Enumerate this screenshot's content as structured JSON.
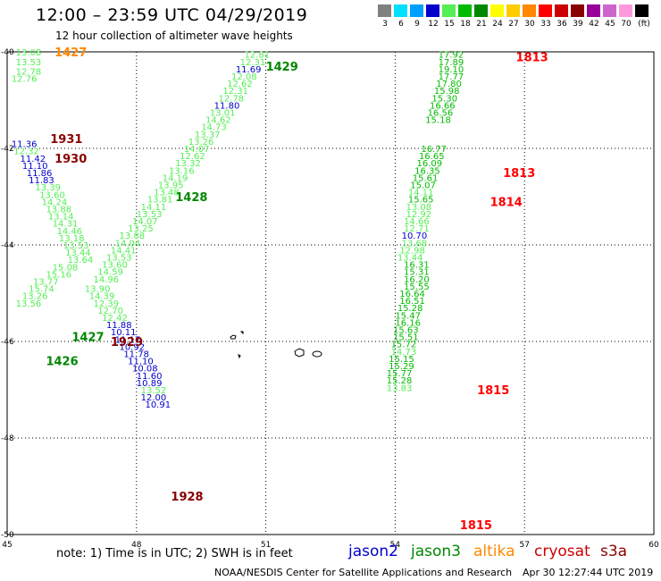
{
  "header": {
    "title": "12:00  – 23:59 UTC 04/29/2019",
    "subtitle": "12 hour collection of altimeter wave heights"
  },
  "color_scale": {
    "unit": "(ft)",
    "bins": [
      {
        "label": "3",
        "color": "#808080"
      },
      {
        "label": "6",
        "color": "#00e0ff"
      },
      {
        "label": "9",
        "color": "#00a0ff"
      },
      {
        "label": "12",
        "color": "#0000cc"
      },
      {
        "label": "15",
        "color": "#55ee55"
      },
      {
        "label": "18",
        "color": "#00bb00"
      },
      {
        "label": "21",
        "color": "#008800"
      },
      {
        "label": "24",
        "color": "#ffff00"
      },
      {
        "label": "27",
        "color": "#ffcc00"
      },
      {
        "label": "30",
        "color": "#ff8800"
      },
      {
        "label": "33",
        "color": "#ff0000"
      },
      {
        "label": "36",
        "color": "#cc0000"
      },
      {
        "label": "39",
        "color": "#880000"
      },
      {
        "label": "42",
        "color": "#990099"
      },
      {
        "label": "45",
        "color": "#cc66cc"
      },
      {
        "label": "70",
        "color": "#ff99dd"
      },
      {
        "label": "",
        "color": "#000000"
      }
    ]
  },
  "axes": {
    "lon_ticks": [
      "45",
      "48",
      "51",
      "54",
      "57",
      "60"
    ],
    "lat_ticks": [
      "-40",
      "-42",
      "-44",
      "-46",
      "-48",
      "-50"
    ]
  },
  "times": [
    {
      "t": "1427",
      "color": "#ff8800",
      "lon": 46.1,
      "lat": -40.0
    },
    {
      "t": "1429",
      "color": "#008800",
      "lon": 51.0,
      "lat": -40.3
    },
    {
      "t": "1931",
      "color": "#880000",
      "lon": 46.0,
      "lat": -41.8
    },
    {
      "t": "1930",
      "color": "#880000",
      "lon": 46.1,
      "lat": -42.2
    },
    {
      "t": "1428",
      "color": "#008800",
      "lon": 48.9,
      "lat": -43.0
    },
    {
      "t": "1427",
      "color": "#008800",
      "lon": 46.5,
      "lat": -45.9
    },
    {
      "t": "1929",
      "color": "#880000",
      "lon": 47.4,
      "lat": -46.0
    },
    {
      "t": "1426",
      "color": "#008800",
      "lon": 45.9,
      "lat": -46.4
    },
    {
      "t": "1928",
      "color": "#880000",
      "lon": 48.8,
      "lat": -49.2
    },
    {
      "t": "1813",
      "color": "#ff0000",
      "lon": 56.8,
      "lat": -40.1
    },
    {
      "t": "1813",
      "color": "#ff0000",
      "lon": 56.5,
      "lat": -42.5
    },
    {
      "t": "1814",
      "color": "#ff0000",
      "lon": 56.2,
      "lat": -43.1
    },
    {
      "t": "1815",
      "color": "#ff0000",
      "lon": 55.9,
      "lat": -47.0
    },
    {
      "t": "1815",
      "color": "#ff0000",
      "lon": 55.5,
      "lat": -49.8
    }
  ],
  "readings": [
    {
      "v": "13.08",
      "c": "#55ee55",
      "lon": 45.2,
      "lat": -40.0
    },
    {
      "v": "13.53",
      "c": "#55ee55",
      "lon": 45.2,
      "lat": -40.2
    },
    {
      "v": "12.78",
      "c": "#55ee55",
      "lon": 45.2,
      "lat": -40.4
    },
    {
      "v": "12.76",
      "c": "#55ee55",
      "lon": 45.1,
      "lat": -40.55
    },
    {
      "v": "12.81",
      "c": "#55ee55",
      "lon": 50.5,
      "lat": -40.05
    },
    {
      "v": "12.31",
      "c": "#55ee55",
      "lon": 50.4,
      "lat": -40.2
    },
    {
      "v": "11.69",
      "c": "#0000cc",
      "lon": 50.3,
      "lat": -40.35
    },
    {
      "v": "12.08",
      "c": "#55ee55",
      "lon": 50.2,
      "lat": -40.5
    },
    {
      "v": "12.62",
      "c": "#55ee55",
      "lon": 50.1,
      "lat": -40.65
    },
    {
      "v": "12.31",
      "c": "#55ee55",
      "lon": 50.0,
      "lat": -40.8
    },
    {
      "v": "12.78",
      "c": "#55ee55",
      "lon": 49.9,
      "lat": -40.95
    },
    {
      "v": "11.80",
      "c": "#0000cc",
      "lon": 49.8,
      "lat": -41.1
    },
    {
      "v": "13.01",
      "c": "#55ee55",
      "lon": 49.7,
      "lat": -41.25
    },
    {
      "v": "14.62",
      "c": "#55ee55",
      "lon": 49.6,
      "lat": -41.4
    },
    {
      "v": "14.73",
      "c": "#55ee55",
      "lon": 49.5,
      "lat": -41.55
    },
    {
      "v": "13.37",
      "c": "#55ee55",
      "lon": 49.35,
      "lat": -41.7
    },
    {
      "v": "13.26",
      "c": "#55ee55",
      "lon": 49.2,
      "lat": -41.85
    },
    {
      "v": "14.07",
      "c": "#55ee55",
      "lon": 49.1,
      "lat": -42.0
    },
    {
      "v": "12.62",
      "c": "#55ee55",
      "lon": 49.0,
      "lat": -42.15
    },
    {
      "v": "13.32",
      "c": "#55ee55",
      "lon": 48.9,
      "lat": -42.3
    },
    {
      "v": "13.16",
      "c": "#55ee55",
      "lon": 48.75,
      "lat": -42.45
    },
    {
      "v": "14.19",
      "c": "#55ee55",
      "lon": 48.6,
      "lat": -42.6
    },
    {
      "v": "13.95",
      "c": "#55ee55",
      "lon": 48.5,
      "lat": -42.75
    },
    {
      "v": "13.48",
      "c": "#55ee55",
      "lon": 48.4,
      "lat": -42.9
    },
    {
      "v": "13.81",
      "c": "#55ee55",
      "lon": 48.25,
      "lat": -43.05
    },
    {
      "v": "14.11",
      "c": "#55ee55",
      "lon": 48.1,
      "lat": -43.2
    },
    {
      "v": "13.53",
      "c": "#55ee55",
      "lon": 48.0,
      "lat": -43.35
    },
    {
      "v": "14.07",
      "c": "#55ee55",
      "lon": 47.9,
      "lat": -43.5
    },
    {
      "v": "13.25",
      "c": "#55ee55",
      "lon": 47.8,
      "lat": -43.65
    },
    {
      "v": "13.88",
      "c": "#55ee55",
      "lon": 47.6,
      "lat": -43.8
    },
    {
      "v": "14.04",
      "c": "#55ee55",
      "lon": 47.5,
      "lat": -43.95
    },
    {
      "v": "14.41",
      "c": "#55ee55",
      "lon": 47.4,
      "lat": -44.1
    },
    {
      "v": "13.53",
      "c": "#55ee55",
      "lon": 47.3,
      "lat": -44.25
    },
    {
      "v": "13.60",
      "c": "#55ee55",
      "lon": 47.2,
      "lat": -44.4
    },
    {
      "v": "14.59",
      "c": "#55ee55",
      "lon": 47.1,
      "lat": -44.55
    },
    {
      "v": "14.96",
      "c": "#55ee55",
      "lon": 47.0,
      "lat": -44.7
    },
    {
      "v": "11.36",
      "c": "#0000cc",
      "lon": 45.1,
      "lat": -41.9
    },
    {
      "v": "12.32",
      "c": "#55ee55",
      "lon": 45.15,
      "lat": -42.05
    },
    {
      "v": "11.42",
      "c": "#0000cc",
      "lon": 45.3,
      "lat": -42.2
    },
    {
      "v": "11.10",
      "c": "#0000cc",
      "lon": 45.35,
      "lat": -42.35
    },
    {
      "v": "11.86",
      "c": "#0000cc",
      "lon": 45.45,
      "lat": -42.5
    },
    {
      "v": "11.83",
      "c": "#0000cc",
      "lon": 45.5,
      "lat": -42.65
    },
    {
      "v": "13.39",
      "c": "#55ee55",
      "lon": 45.65,
      "lat": -42.8
    },
    {
      "v": "13.60",
      "c": "#55ee55",
      "lon": 45.75,
      "lat": -42.95
    },
    {
      "v": "14.24",
      "c": "#55ee55",
      "lon": 45.8,
      "lat": -43.1
    },
    {
      "v": "13.88",
      "c": "#55ee55",
      "lon": 45.9,
      "lat": -43.25
    },
    {
      "v": "13.14",
      "c": "#55ee55",
      "lon": 45.95,
      "lat": -43.4
    },
    {
      "v": "14.31",
      "c": "#55ee55",
      "lon": 46.05,
      "lat": -43.55
    },
    {
      "v": "14.46",
      "c": "#55ee55",
      "lon": 46.15,
      "lat": -43.7
    },
    {
      "v": "13.18",
      "c": "#55ee55",
      "lon": 46.2,
      "lat": -43.85
    },
    {
      "v": "13.53",
      "c": "#55ee55",
      "lon": 46.3,
      "lat": -44.0
    },
    {
      "v": "13.44",
      "c": "#55ee55",
      "lon": 46.35,
      "lat": -44.15
    },
    {
      "v": "13.64",
      "c": "#55ee55",
      "lon": 46.4,
      "lat": -44.3
    },
    {
      "v": "15.08",
      "c": "#55ee55",
      "lon": 46.05,
      "lat": -44.45
    },
    {
      "v": "15.16",
      "c": "#55ee55",
      "lon": 45.9,
      "lat": -44.6
    },
    {
      "v": "13.77",
      "c": "#55ee55",
      "lon": 45.6,
      "lat": -44.75
    },
    {
      "v": "15.74",
      "c": "#55ee55",
      "lon": 45.5,
      "lat": -44.9
    },
    {
      "v": "13.26",
      "c": "#55ee55",
      "lon": 45.35,
      "lat": -45.05
    },
    {
      "v": "13.56",
      "c": "#55ee55",
      "lon": 45.2,
      "lat": -45.2
    },
    {
      "v": "13.90",
      "c": "#55ee55",
      "lon": 46.8,
      "lat": -44.9
    },
    {
      "v": "14.39",
      "c": "#55ee55",
      "lon": 46.9,
      "lat": -45.05
    },
    {
      "v": "12.39",
      "c": "#55ee55",
      "lon": 47.0,
      "lat": -45.2
    },
    {
      "v": "12.70",
      "c": "#55ee55",
      "lon": 47.1,
      "lat": -45.35
    },
    {
      "v": "12.42",
      "c": "#55ee55",
      "lon": 47.2,
      "lat": -45.5
    },
    {
      "v": "11.88",
      "c": "#0000cc",
      "lon": 47.3,
      "lat": -45.65
    },
    {
      "v": "10.11",
      "c": "#0000cc",
      "lon": 47.4,
      "lat": -45.8
    },
    {
      "v": "11.17",
      "c": "#0000cc",
      "lon": 47.5,
      "lat": -45.95
    },
    {
      "v": "10.92",
      "c": "#0000cc",
      "lon": 47.6,
      "lat": -46.1
    },
    {
      "v": "11.78",
      "c": "#0000cc",
      "lon": 47.7,
      "lat": -46.25
    },
    {
      "v": "11.10",
      "c": "#0000cc",
      "lon": 47.8,
      "lat": -46.4
    },
    {
      "v": "10.08",
      "c": "#0000cc",
      "lon": 47.9,
      "lat": -46.55
    },
    {
      "v": "11.60",
      "c": "#0000cc",
      "lon": 48.0,
      "lat": -46.7
    },
    {
      "v": "10.89",
      "c": "#0000cc",
      "lon": 48.0,
      "lat": -46.85
    },
    {
      "v": "13.52",
      "c": "#55ee55",
      "lon": 48.1,
      "lat": -47.0
    },
    {
      "v": "12.00",
      "c": "#0000cc",
      "lon": 48.1,
      "lat": -47.15
    },
    {
      "v": "10.91",
      "c": "#0000cc",
      "lon": 48.2,
      "lat": -47.3
    },
    {
      "v": "17.92",
      "c": "#00bb00",
      "lon": 55.0,
      "lat": -40.05
    },
    {
      "v": "17.89",
      "c": "#00bb00",
      "lon": 55.0,
      "lat": -40.2
    },
    {
      "v": "19.10",
      "c": "#00bb00",
      "lon": 55.0,
      "lat": -40.35
    },
    {
      "v": "17.77",
      "c": "#00bb00",
      "lon": 55.0,
      "lat": -40.5
    },
    {
      "v": "17.80",
      "c": "#00bb00",
      "lon": 54.95,
      "lat": -40.65
    },
    {
      "v": "15.98",
      "c": "#00bb00",
      "lon": 54.9,
      "lat": -40.8
    },
    {
      "v": "15.30",
      "c": "#00bb00",
      "lon": 54.85,
      "lat": -40.95
    },
    {
      "v": "16.66",
      "c": "#00bb00",
      "lon": 54.8,
      "lat": -41.1
    },
    {
      "v": "16.56",
      "c": "#00bb00",
      "lon": 54.75,
      "lat": -41.25
    },
    {
      "v": "15.18",
      "c": "#00bb00",
      "lon": 54.7,
      "lat": -41.4
    },
    {
      "v": "16.77",
      "c": "#00bb00",
      "lon": 54.6,
      "lat": -42.0
    },
    {
      "v": "16.65",
      "c": "#00bb00",
      "lon": 54.55,
      "lat": -42.15
    },
    {
      "v": "16.09",
      "c": "#00bb00",
      "lon": 54.5,
      "lat": -42.3
    },
    {
      "v": "16.35",
      "c": "#00bb00",
      "lon": 54.45,
      "lat": -42.45
    },
    {
      "v": "15.61",
      "c": "#00bb00",
      "lon": 54.4,
      "lat": -42.6
    },
    {
      "v": "15.07",
      "c": "#00bb00",
      "lon": 54.35,
      "lat": -42.75
    },
    {
      "v": "14.11",
      "c": "#55ee55",
      "lon": 54.3,
      "lat": -42.9
    },
    {
      "v": "15.65",
      "c": "#00bb00",
      "lon": 54.3,
      "lat": -43.05
    },
    {
      "v": "13.08",
      "c": "#55ee55",
      "lon": 54.25,
      "lat": -43.2
    },
    {
      "v": "12.92",
      "c": "#55ee55",
      "lon": 54.25,
      "lat": -43.35
    },
    {
      "v": "14.66",
      "c": "#55ee55",
      "lon": 54.2,
      "lat": -43.5
    },
    {
      "v": "12.71",
      "c": "#55ee55",
      "lon": 54.2,
      "lat": -43.65
    },
    {
      "v": "10.70",
      "c": "#0000cc",
      "lon": 54.15,
      "lat": -43.8
    },
    {
      "v": "13.68",
      "c": "#55ee55",
      "lon": 54.15,
      "lat": -43.95
    },
    {
      "v": "12.98",
      "c": "#55ee55",
      "lon": 54.1,
      "lat": -44.1
    },
    {
      "v": "13.44",
      "c": "#55ee55",
      "lon": 54.05,
      "lat": -44.25
    },
    {
      "v": "16.31",
      "c": "#00bb00",
      "lon": 54.2,
      "lat": -44.4
    },
    {
      "v": "15.31",
      "c": "#00bb00",
      "lon": 54.2,
      "lat": -44.55
    },
    {
      "v": "16.20",
      "c": "#00bb00",
      "lon": 54.2,
      "lat": -44.7
    },
    {
      "v": "15.55",
      "c": "#00bb00",
      "lon": 54.2,
      "lat": -44.85
    },
    {
      "v": "16.64",
      "c": "#00bb00",
      "lon": 54.1,
      "lat": -45.0
    },
    {
      "v": "16.51",
      "c": "#00bb00",
      "lon": 54.1,
      "lat": -45.15
    },
    {
      "v": "15.28",
      "c": "#00bb00",
      "lon": 54.05,
      "lat": -45.3
    },
    {
      "v": "15.47",
      "c": "#00bb00",
      "lon": 54.0,
      "lat": -45.45
    },
    {
      "v": "16.16",
      "c": "#00bb00",
      "lon": 54.0,
      "lat": -45.6
    },
    {
      "v": "15.63",
      "c": "#00bb00",
      "lon": 53.95,
      "lat": -45.75
    },
    {
      "v": "15.51",
      "c": "#00bb00",
      "lon": 53.95,
      "lat": -45.9
    },
    {
      "v": "15.72",
      "c": "#00bb00",
      "lon": 53.9,
      "lat": -46.05
    },
    {
      "v": "14.73",
      "c": "#55ee55",
      "lon": 53.9,
      "lat": -46.2
    },
    {
      "v": "15.15",
      "c": "#00bb00",
      "lon": 53.85,
      "lat": -46.35
    },
    {
      "v": "15.29",
      "c": "#00bb00",
      "lon": 53.85,
      "lat": -46.5
    },
    {
      "v": "15.77",
      "c": "#00bb00",
      "lon": 53.8,
      "lat": -46.65
    },
    {
      "v": "15.28",
      "c": "#00bb00",
      "lon": 53.8,
      "lat": -46.8
    },
    {
      "v": "13.83",
      "c": "#55ee55",
      "lon": 53.8,
      "lat": -46.95
    }
  ],
  "footer": {
    "note": "note:  1) Time is in UTC;  2) SWH is in feet",
    "satellites": [
      {
        "name": "jason2",
        "color": "#0000cc"
      },
      {
        "name": "jason3",
        "color": "#008800"
      },
      {
        "name": "altika",
        "color": "#ff8800"
      },
      {
        "name": "cryosat",
        "color": "#cc0000"
      },
      {
        "name": "s3a",
        "color": "#880000"
      }
    ],
    "credit": "NOAA/NESDIS Center for Satellite Applications and Research",
    "timestamp": "Apr 30 12:27:44 UTC 2019"
  }
}
